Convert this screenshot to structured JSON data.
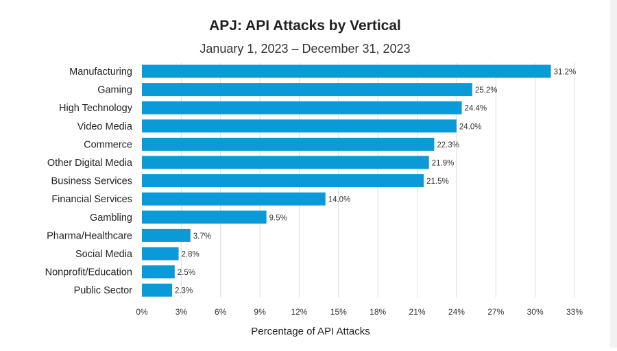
{
  "chart_data": {
    "type": "bar",
    "orientation": "horizontal",
    "title": "APJ: API Attacks by Vertical",
    "subtitle": "January 1, 2023 – December 31, 2023",
    "xlabel": "Percentage of API Attacks",
    "ylabel": "",
    "categories": [
      "Manufacturing",
      "Gaming",
      "High Technology",
      "Video Media",
      "Commerce",
      "Other Digital Media",
      "Business Services",
      "Financial Services",
      "Gambling",
      "Pharma/Healthcare",
      "Social Media",
      "Nonprofit/Education",
      "Public Sector"
    ],
    "values": [
      31.2,
      25.2,
      24.4,
      24.0,
      22.3,
      21.9,
      21.5,
      14.0,
      9.5,
      3.7,
      2.8,
      2.5,
      2.3
    ],
    "value_labels": [
      "31.2%",
      "25.2%",
      "24.4%",
      "24.0%",
      "22.3%",
      "21.9%",
      "21.5%",
      "14.0%",
      "9.5%",
      "3.7%",
      "2.8%",
      "2.5%",
      "2.3%"
    ],
    "xlim": [
      0,
      33
    ],
    "xticks": [
      0,
      3,
      6,
      9,
      12,
      15,
      18,
      21,
      24,
      27,
      30,
      33
    ],
    "xtick_labels": [
      "0%",
      "3%",
      "6%",
      "9%",
      "12%",
      "15%",
      "18%",
      "21%",
      "24%",
      "27%",
      "30%",
      "33%"
    ],
    "grid": "vertical",
    "bar_color": "#0b9ad8"
  }
}
